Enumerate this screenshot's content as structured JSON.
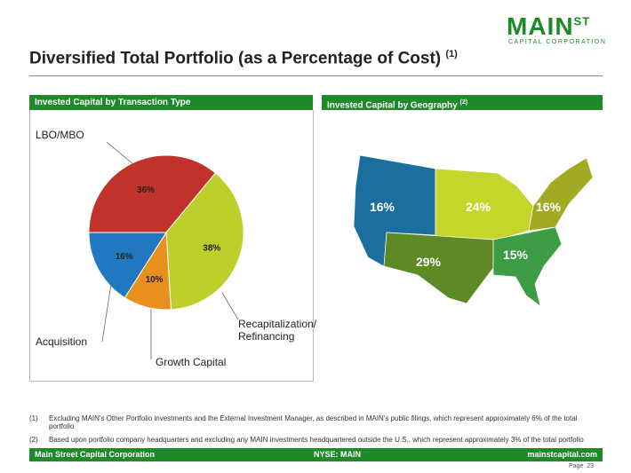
{
  "logo": {
    "name": "MAIN",
    "sup": "ST",
    "sub": "CAPITAL CORPORATION"
  },
  "title": {
    "text": "Diversified Total Portfolio (as a Percentage of Cost)",
    "note": "(1)"
  },
  "chart_data": [
    {
      "type": "pie",
      "title": "Invested Capital by Transaction Type",
      "categories": [
        "LBO/MBO",
        "Recapitalization/ Refinancing",
        "Growth Capital",
        "Acquisition"
      ],
      "values": [
        36,
        38,
        10,
        16
      ],
      "value_labels": [
        "36%",
        "38%",
        "10%",
        "16%"
      ],
      "colors": [
        "#c0332a",
        "#bccf2a",
        "#e8901e",
        "#1f78c0"
      ]
    },
    {
      "type": "map",
      "title": "Invested Capital by Geography",
      "title_note": "(2)",
      "values": [
        16,
        24,
        16,
        29,
        15
      ],
      "value_labels": [
        "16%",
        "24%",
        "16%",
        "29%",
        "15%"
      ],
      "colors": [
        "#1a6f9e",
        "#c4d62a",
        "#a2aa24",
        "#5e8a25",
        "#3d9d45"
      ]
    }
  ],
  "footnotes": [
    {
      "marker": "(1)",
      "text": "Excluding MAIN's Other Portfolio investments and the External Investment Manager, as described in MAIN's public filings, which represent approximately 6% of the total portfolio"
    },
    {
      "marker": "(2)",
      "text": "Based upon portfolio company headquarters and excluding any MAIN investments headquartered outside the U.S., which represent approximately 3% of the total portfolio"
    }
  ],
  "footer": {
    "left": "Main Street Capital Corporation",
    "center": "NYSE: MAIN",
    "right": "mainstcapital.com",
    "page": "Page  23"
  }
}
